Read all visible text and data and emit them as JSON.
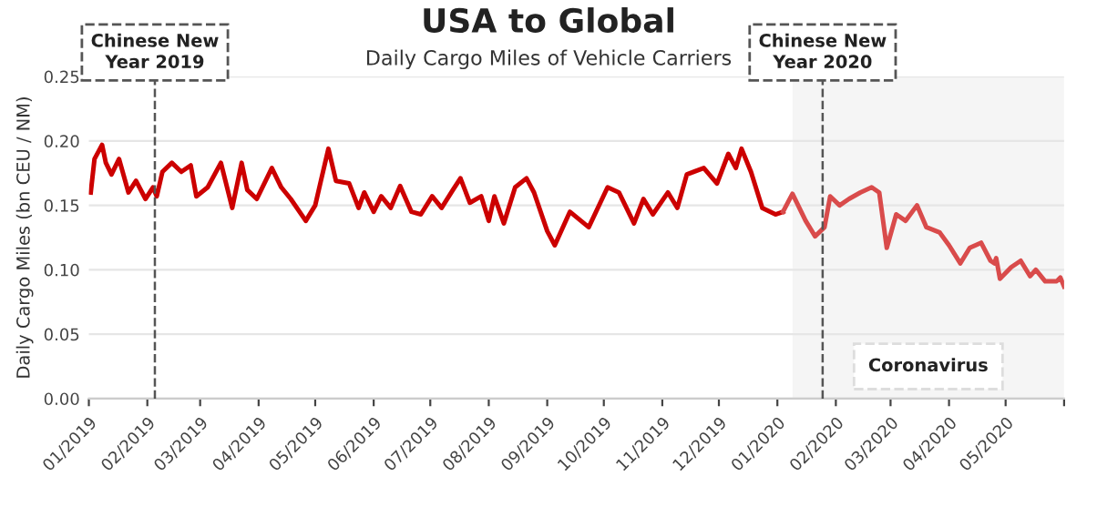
{
  "chart_data": {
    "type": "line",
    "title": "USA to Global",
    "subtitle": "Daily Cargo Miles of Vehicle Carriers",
    "ylabel": "Daily Cargo Miles (bn CEU / NM)",
    "series": [
      {
        "color": "#cc0000",
        "x": [
          "2019-01-02",
          "2019-01-04",
          "2019-01-08",
          "2019-01-10",
          "2019-01-13",
          "2019-01-17",
          "2019-01-22",
          "2019-01-26",
          "2019-01-31",
          "2019-02-04",
          "2019-02-06",
          "2019-02-09",
          "2019-02-14",
          "2019-02-19",
          "2019-02-24",
          "2019-02-27",
          "2019-03-05",
          "2019-03-12",
          "2019-03-18",
          "2019-03-23",
          "2019-03-26",
          "2019-03-31",
          "2019-04-08",
          "2019-04-13",
          "2019-04-18",
          "2019-04-26",
          "2019-05-01",
          "2019-05-04",
          "2019-05-08",
          "2019-05-12",
          "2019-05-19",
          "2019-05-24",
          "2019-05-27",
          "2019-06-01",
          "2019-06-05",
          "2019-06-10",
          "2019-06-15",
          "2019-06-21",
          "2019-06-26",
          "2019-07-02",
          "2019-07-07",
          "2019-07-13",
          "2019-07-17",
          "2019-07-22",
          "2019-07-28",
          "2019-08-01",
          "2019-08-04",
          "2019-08-09",
          "2019-08-15",
          "2019-08-21",
          "2019-08-25",
          "2019-09-01",
          "2019-09-05",
          "2019-09-13",
          "2019-09-23",
          "2019-10-03",
          "2019-10-09",
          "2019-10-17",
          "2019-10-22",
          "2019-10-27",
          "2019-11-04",
          "2019-11-09",
          "2019-11-14",
          "2019-11-23",
          "2019-11-30",
          "2019-12-06",
          "2019-12-10",
          "2019-12-13",
          "2019-12-18",
          "2019-12-24",
          "2019-12-31",
          "2020-01-04"
        ],
        "values": [
          0.16,
          0.186,
          0.197,
          0.183,
          0.174,
          0.186,
          0.16,
          0.169,
          0.155,
          0.164,
          0.157,
          0.176,
          0.183,
          0.176,
          0.181,
          0.157,
          0.164,
          0.183,
          0.148,
          0.183,
          0.162,
          0.155,
          0.179,
          0.164,
          0.155,
          0.138,
          0.15,
          0.169,
          0.194,
          0.169,
          0.167,
          0.148,
          0.16,
          0.145,
          0.157,
          0.148,
          0.165,
          0.145,
          0.143,
          0.157,
          0.148,
          0.162,
          0.171,
          0.152,
          0.157,
          0.138,
          0.157,
          0.136,
          0.164,
          0.171,
          0.16,
          0.13,
          0.119,
          0.145,
          0.133,
          0.164,
          0.16,
          0.136,
          0.155,
          0.143,
          0.16,
          0.148,
          0.174,
          0.179,
          0.167,
          0.19,
          0.179,
          0.194,
          0.176,
          0.148,
          0.143,
          0.145
        ]
      },
      {
        "color": "#d94b4b",
        "x": [
          "2020-01-04",
          "2020-01-09",
          "2020-01-16",
          "2020-01-21",
          "2020-01-26",
          "2020-01-29",
          "2020-02-03",
          "2020-02-08",
          "2020-02-14",
          "2020-02-20",
          "2020-02-24",
          "2020-02-28",
          "2020-03-04",
          "2020-03-09",
          "2020-03-15",
          "2020-03-20",
          "2020-03-27",
          "2020-04-01",
          "2020-04-07",
          "2020-04-12",
          "2020-04-18",
          "2020-04-23",
          "2020-04-25",
          "2020-04-26",
          "2020-04-28",
          "2020-05-04",
          "2020-05-09",
          "2020-05-14",
          "2020-05-17",
          "2020-05-22",
          "2020-05-28",
          "2020-05-30",
          "2020-06-01"
        ],
        "values": [
          0.145,
          0.159,
          0.138,
          0.126,
          0.133,
          0.157,
          0.15,
          0.155,
          0.16,
          0.164,
          0.16,
          0.117,
          0.143,
          0.138,
          0.15,
          0.133,
          0.129,
          0.119,
          0.105,
          0.117,
          0.121,
          0.107,
          0.105,
          0.109,
          0.093,
          0.102,
          0.107,
          0.095,
          0.1,
          0.091,
          0.091,
          0.094,
          0.087
        ]
      }
    ],
    "xlim": [
      "2019-01-01",
      "2020-06-01"
    ],
    "xticks": [
      {
        "value": "2019-01",
        "label": "01/2019"
      },
      {
        "value": "2019-02",
        "label": "02/2019"
      },
      {
        "value": "2019-03",
        "label": "03/2019"
      },
      {
        "value": "2019-04",
        "label": "04/2019"
      },
      {
        "value": "2019-05",
        "label": "05/2019"
      },
      {
        "value": "2019-06",
        "label": "06/2019"
      },
      {
        "value": "2019-07",
        "label": "07/2019"
      },
      {
        "value": "2019-08",
        "label": "08/2019"
      },
      {
        "value": "2019-09",
        "label": "09/2019"
      },
      {
        "value": "2019-10",
        "label": "10/2019"
      },
      {
        "value": "2019-11",
        "label": "11/2019"
      },
      {
        "value": "2019-12",
        "label": "12/2019"
      },
      {
        "value": "2020-01",
        "label": "01/2020"
      },
      {
        "value": "2020-02",
        "label": "02/2020"
      },
      {
        "value": "2020-03",
        "label": "03/2020"
      },
      {
        "value": "2020-04",
        "label": "04/2020"
      },
      {
        "value": "2020-05",
        "label": "05/2020"
      },
      {
        "value": "2020-06",
        "label": null
      }
    ],
    "ylim": [
      0,
      0.25
    ],
    "yticks": [
      {
        "value": 0,
        "label": "0.00"
      },
      {
        "value": 0.05,
        "label": "0.05"
      },
      {
        "value": 0.1,
        "label": "0.10"
      },
      {
        "value": 0.15,
        "label": "0.15"
      },
      {
        "value": 0.2,
        "label": "0.20"
      },
      {
        "value": 0.25,
        "label": "0.25"
      }
    ],
    "grid": "y",
    "line_style": "solid",
    "ref_lines": [
      {
        "axis": "x",
        "value": "2019-02-05",
        "label": "Chinese New\nYear 2019",
        "color": "#555555",
        "line_style": "dashed"
      },
      {
        "axis": "x",
        "value": "2020-01-25",
        "label": "Chinese New\nYear 2020",
        "color": "#555555",
        "line_style": "dashed"
      }
    ],
    "bands": [
      {
        "axis": "x",
        "from": "2020-01-09",
        "to": "2020-06-01",
        "label": "Coronavirus",
        "color": "#f5f5f5"
      }
    ]
  }
}
